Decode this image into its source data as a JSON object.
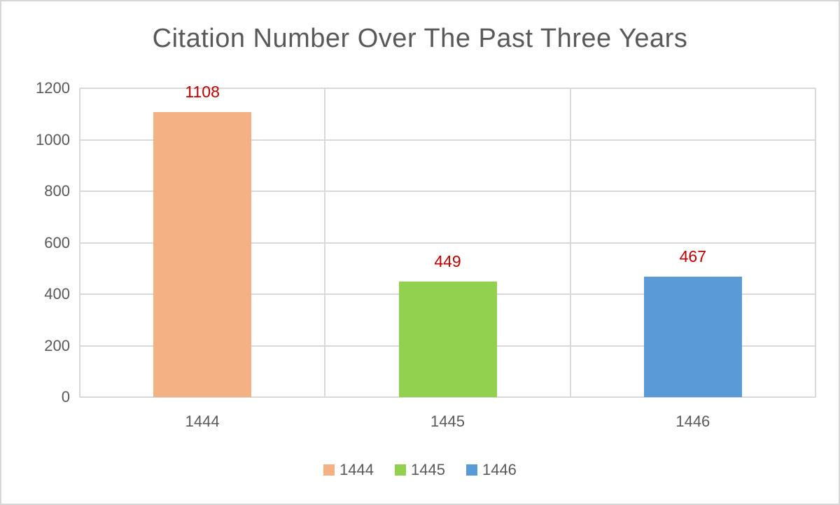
{
  "chart_data": {
    "type": "bar",
    "title": "Citation Number Over The Past Three Years",
    "categories": [
      "1444",
      "1445",
      "1446"
    ],
    "values": [
      1108,
      449,
      467
    ],
    "bar_colors": [
      "#F4B183",
      "#92D050",
      "#5B9BD5"
    ],
    "data_labels": [
      "1108",
      "449",
      "467"
    ],
    "data_label_color": "#C00000",
    "xlabel": "",
    "ylabel": "",
    "y_axis": {
      "min": 0,
      "max": 1200,
      "step": 200,
      "tick_labels": [
        "0",
        "200",
        "400",
        "600",
        "800",
        "1000",
        "1200"
      ]
    },
    "grid": "on",
    "legend": {
      "position": "bottom",
      "entries": [
        {
          "label": "1444",
          "color": "#F4B183"
        },
        {
          "label": "1445",
          "color": "#92D050"
        },
        {
          "label": "1446",
          "color": "#5B9BD5"
        }
      ]
    },
    "theme": {
      "text_color": "#595959",
      "gridline_color": "#D9D9D9",
      "background": "#FFFFFF",
      "frame_border_color": "#D6D6D6"
    }
  }
}
